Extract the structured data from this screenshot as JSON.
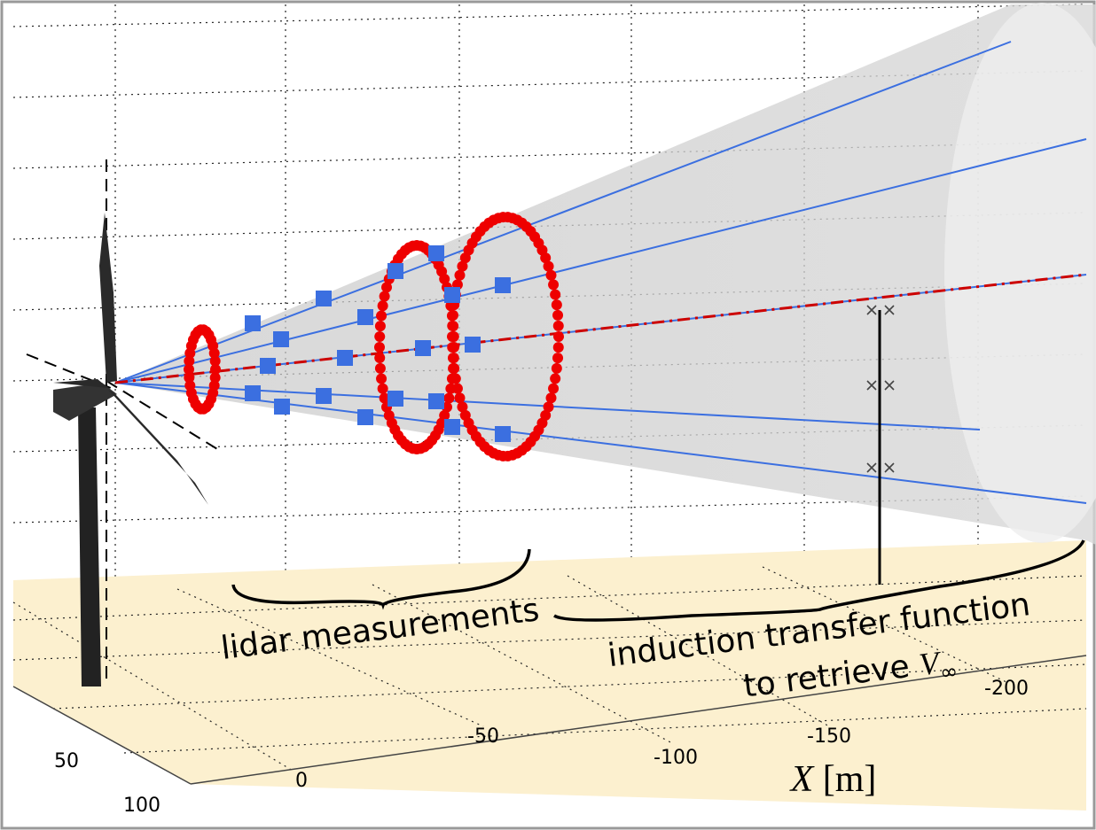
{
  "annotations": {
    "lidar": "lidar measurements",
    "induction_line1": "induction transfer function",
    "induction_line2": {
      "text": "to retrieve",
      "symbol": "V",
      "subscript": "∞"
    }
  },
  "x_axis": {
    "symbol": "X",
    "unit": "[m]",
    "ticks": [
      0,
      -50,
      -100,
      -150,
      -200
    ]
  },
  "y_axis": {
    "ticks": [
      50,
      100
    ]
  }
}
